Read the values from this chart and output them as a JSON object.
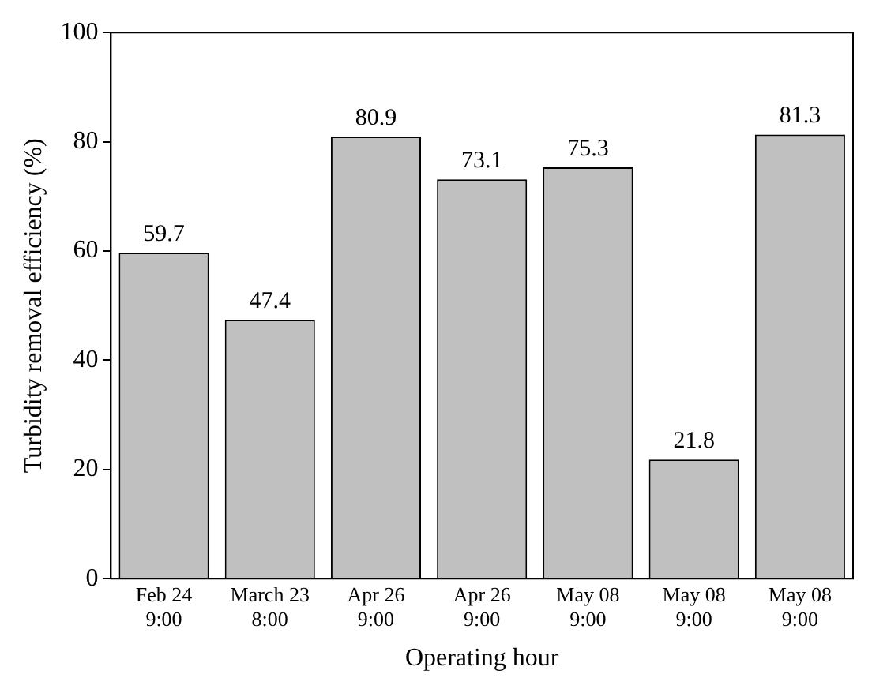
{
  "chart_data": {
    "type": "bar",
    "xlabel": "Operating hour",
    "ylabel": "Turbidity removal efficiency (%)",
    "categories": [
      "Feb 24\n9:00",
      "March 23\n8:00",
      "Apr 26\n9:00",
      "Apr 26\n9:00",
      "May 08\n9:00",
      "May 08\n9:00",
      "May 08\n9:00"
    ],
    "values": [
      59.7,
      47.4,
      80.9,
      73.1,
      75.3,
      21.8,
      81.3
    ],
    "color": "#c0c0c0",
    "ylim": [
      0,
      100
    ],
    "yticks": [
      0,
      20,
      40,
      60,
      80,
      100
    ],
    "grid": false,
    "data_labels": true,
    "legend": false
  }
}
